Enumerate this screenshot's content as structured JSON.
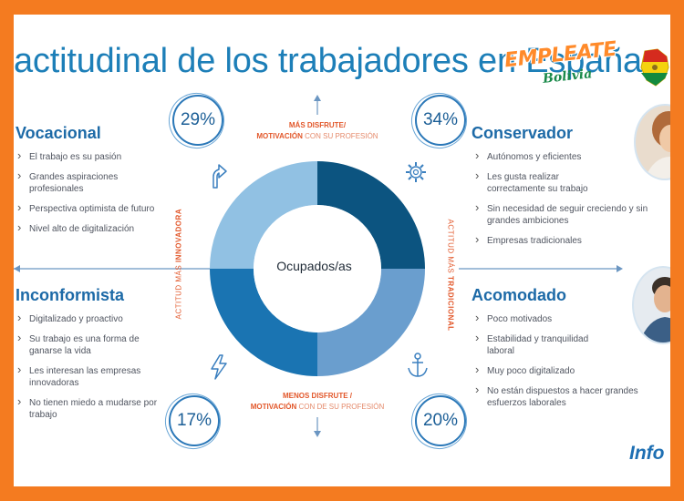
{
  "header": {
    "title": "actitudinal de los trabajadores en España",
    "logo_main": "EMPLEATE",
    "logo_sub": "Bolivia"
  },
  "chart_data": {
    "type": "pie",
    "center_label": "Ocupados/as",
    "categories": [
      "Conservador",
      "Acomodado",
      "Inconformista",
      "Vocacional"
    ],
    "values": [
      34,
      20,
      17,
      29
    ],
    "colors": [
      "#0c5480",
      "#6a9ece",
      "#1a74b2",
      "#91c1e3"
    ],
    "axis_top": {
      "bold": "MÁS DISFRUTE/",
      "line2_bold": "MOTIVACIÓN",
      "line2_rest": " CON SU PROFESIÓN"
    },
    "axis_bottom": {
      "bold": "MENOS DISFRUTE /",
      "line2_bold": "MOTIVACIÓN",
      "line2_rest": " CON DE SU PROFESIÓN"
    },
    "axis_left": {
      "rest": "ACTITUD MÁS ",
      "bold": "INNOVADORA"
    },
    "axis_right": {
      "rest": "ACTITUD MÁS ",
      "bold": "TRADICIONAL"
    }
  },
  "quadrants": {
    "vocacional": {
      "title": "Vocacional",
      "percent": "29%",
      "items": [
        "El trabajo es su pasión",
        "Grandes aspiraciones profesionales",
        "Perspectiva optimista de futuro",
        "Nivel alto de digitalización"
      ]
    },
    "conservador": {
      "title": "Conservador",
      "percent": "34%",
      "items": [
        "Autónomos y eficientes",
        "Les gusta realizar correctamente su trabajo",
        "Sin necesidad de seguir creciendo y sin grandes ambiciones",
        "Empresas tradicionales"
      ]
    },
    "inconformista": {
      "title": "Inconformista",
      "percent": "17%",
      "items": [
        "Digitalizado y proactivo",
        "Su trabajo es una forma de ganarse la vida",
        "Les interesan las empresas innovadoras",
        "No tienen miedo a mudarse por trabajo"
      ]
    },
    "acomodado": {
      "title": "Acomodado",
      "percent": "20%",
      "items": [
        "Poco motivados",
        "Estabilidad y tranquilidad laboral",
        "Muy poco digitalizado",
        "No están dispuestos a hacer grandes esfuerzos laborales"
      ]
    }
  },
  "footer": {
    "brand": "Info"
  },
  "icons": [
    "arrow-up-icon",
    "arrow-down-icon",
    "arrow-left-icon",
    "arrow-right-icon",
    "rocket-arrow-icon",
    "gear-icon",
    "lightning-icon",
    "anchor-icon"
  ]
}
